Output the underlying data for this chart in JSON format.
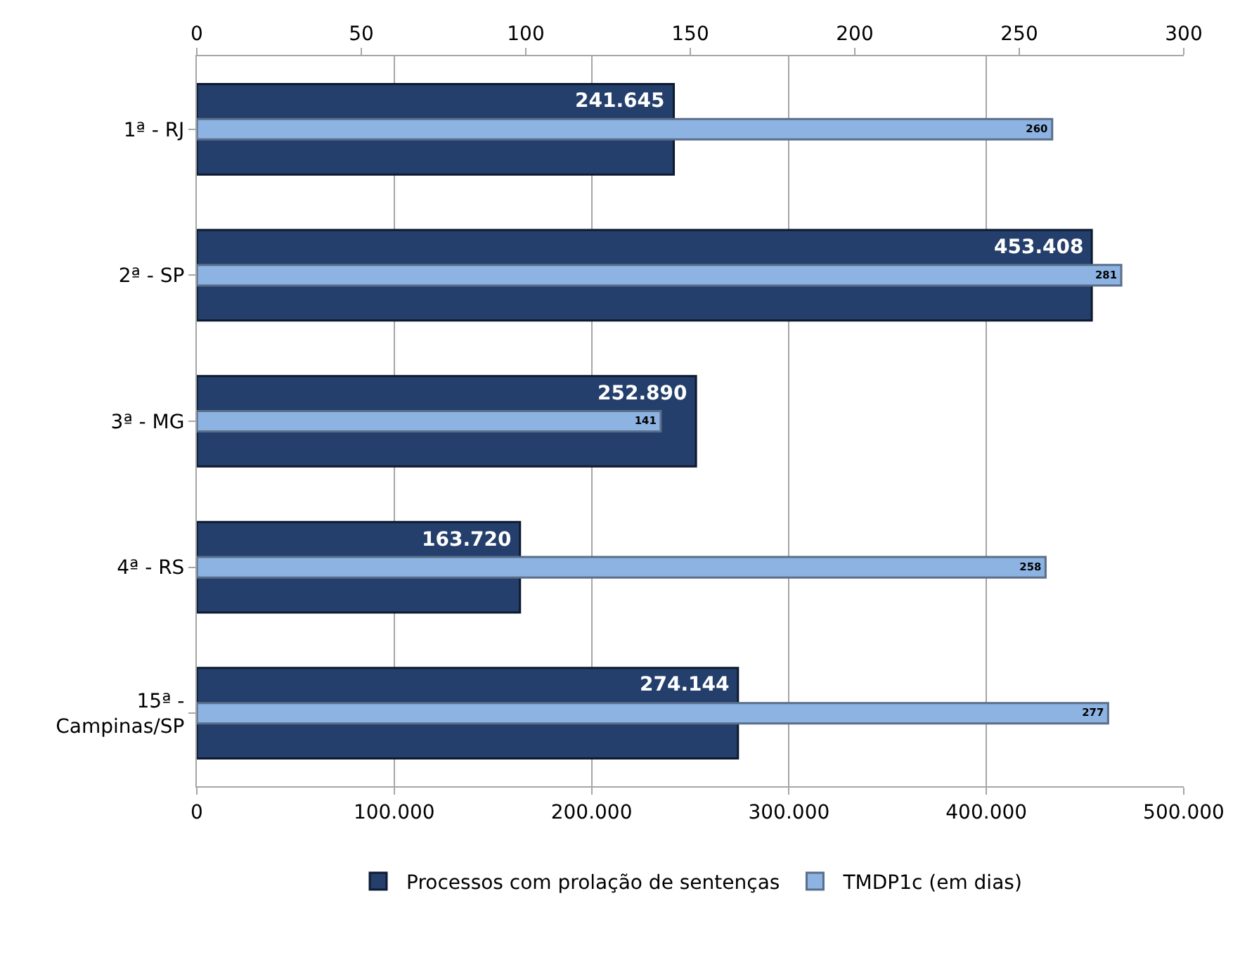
{
  "chart_data": {
    "type": "bar",
    "orientation": "horizontal",
    "categories": [
      "1ª - RJ",
      "2ª - SP",
      "3ª - MG",
      "4ª - RS",
      "15ª - Campinas/SP"
    ],
    "series": [
      {
        "name": "Processos com prolação de sentenças",
        "color": "#243f6b",
        "values": [
          241645,
          453408,
          252890,
          163720,
          274144
        ],
        "value_labels": [
          "241.645",
          "453.408",
          "252.890",
          "163.720",
          "274.144"
        ]
      },
      {
        "name": "TMDP1c (em dias)",
        "color": "#8db3e2",
        "axis": "x2",
        "values": [
          260,
          281,
          141,
          258,
          277
        ],
        "value_labels": [
          "260",
          "281",
          "141",
          "258",
          "277"
        ]
      }
    ],
    "xlim": [
      0,
      500000
    ],
    "xticks": [
      {
        "value": 0,
        "label": "0"
      },
      {
        "value": 100000,
        "label": "100.000"
      },
      {
        "value": 200000,
        "label": "200.000"
      },
      {
        "value": 300000,
        "label": "300.000"
      },
      {
        "value": 400000,
        "label": "400.000"
      },
      {
        "value": 500000,
        "label": "500.000"
      }
    ],
    "x2lim": [
      0,
      300
    ],
    "x2ticks": [
      0,
      50,
      100,
      150,
      200,
      250,
      300
    ],
    "grid": "x",
    "legend": "bottom"
  }
}
